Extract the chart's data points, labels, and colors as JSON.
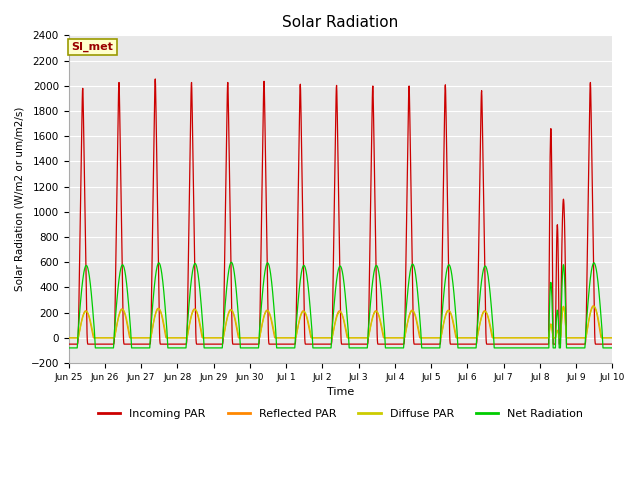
{
  "title": "Solar Radiation",
  "xlabel": "Time",
  "ylabel": "Solar Radiation (W/m2 or um/m2/s)",
  "ylim": [
    -200,
    2400
  ],
  "yticks": [
    -200,
    0,
    200,
    400,
    600,
    800,
    1000,
    1200,
    1400,
    1600,
    1800,
    2000,
    2200,
    2400
  ],
  "colors": {
    "incoming": "#cc0000",
    "reflected": "#ff8800",
    "diffuse": "#cccc00",
    "net": "#00cc00"
  },
  "legend_labels": [
    "Incoming PAR",
    "Reflected PAR",
    "Diffuse PAR",
    "Net Radiation"
  ],
  "station_label": "SI_met",
  "background_color": "#e8e8e8",
  "n_days": 15,
  "xtick_labels": [
    "Jun 25",
    "Jun 26",
    "Jun 27",
    "Jun 28",
    "Jun 29",
    "Jun 30",
    "Jul 1",
    "Jul 2",
    "Jul 3",
    "Jul 4",
    "Jul 5",
    "Jul 6",
    "Jul 7",
    "Jul 8",
    "Jul 9",
    "Jul 10"
  ],
  "peak_incoming": [
    2130,
    2180,
    2210,
    2180,
    2180,
    2190,
    2165,
    2155,
    2150,
    2150,
    2160,
    2110,
    0,
    0,
    2180
  ],
  "peak_net": [
    575,
    580,
    595,
    590,
    600,
    595,
    575,
    570,
    575,
    585,
    580,
    570,
    0,
    0,
    595
  ],
  "peak_reflected": [
    215,
    230,
    235,
    230,
    225,
    220,
    215,
    215,
    215,
    220,
    220,
    215,
    0,
    0,
    255
  ],
  "peak_diffuse": [
    210,
    225,
    230,
    225,
    220,
    215,
    210,
    205,
    210,
    215,
    215,
    210,
    0,
    0,
    250
  ],
  "incoming_base": -50,
  "net_base": -80,
  "day8_peaks": [
    1660,
    900,
    1100
  ],
  "day8_net_peaks": [
    440,
    220,
    580
  ],
  "day8_ref_peaks": [
    110,
    60,
    250
  ],
  "day8_diff_peaks": [
    105,
    55,
    245
  ]
}
